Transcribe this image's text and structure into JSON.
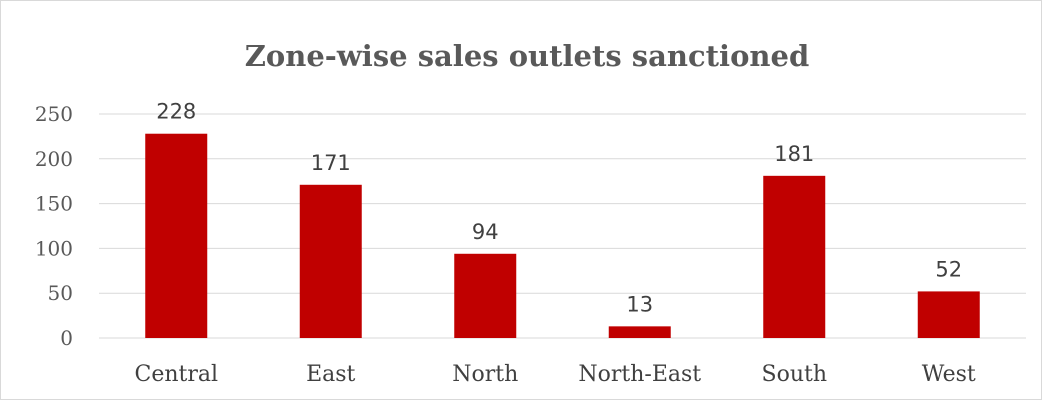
{
  "chart_data": {
    "type": "bar",
    "title": "Zone-wise sales outlets sanctioned",
    "xlabel": "",
    "ylabel": "",
    "categories": [
      "Central",
      "East",
      "North",
      "North-East",
      "South",
      "West"
    ],
    "values": [
      228,
      171,
      94,
      13,
      181,
      52
    ],
    "ylim": [
      0,
      250
    ],
    "yticks": [
      0,
      50,
      100,
      150,
      200,
      250
    ],
    "data_labels": true,
    "grid": true,
    "legend": "none",
    "colors": {
      "bar": "#c00000"
    }
  }
}
